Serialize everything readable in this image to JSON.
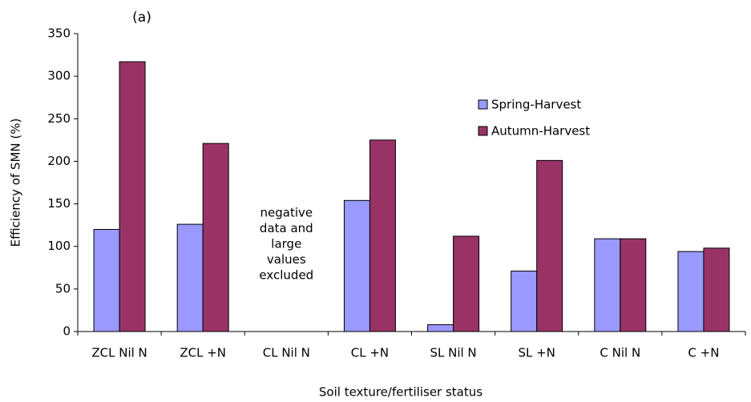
{
  "chart_data": {
    "type": "bar",
    "title": "(a)",
    "x_label": "Soil texture/fertiliser status",
    "y_label": "Efficiency of SMN (%)",
    "categories": [
      "ZCL Nil N",
      "ZCL +N",
      "CL Nil N",
      "CL +N",
      "SL Nil N",
      "SL +N",
      "C Nil N",
      "C +N"
    ],
    "series": [
      {
        "name": "Spring-Harvest",
        "color": "#9999ff",
        "values": [
          120,
          126,
          null,
          154,
          8,
          71,
          109,
          94
        ]
      },
      {
        "name": "Autumn-Harvest",
        "color": "#993366",
        "values": [
          317,
          221,
          null,
          225,
          112,
          201,
          109,
          98
        ]
      }
    ],
    "annotation": [
      "negative",
      "data and",
      "large",
      "values",
      "excluded"
    ],
    "ylim": [
      0,
      350
    ],
    "yticks": [
      0,
      50,
      100,
      150,
      200,
      250,
      300,
      350
    ],
    "grid": false,
    "legend": "upper right"
  }
}
